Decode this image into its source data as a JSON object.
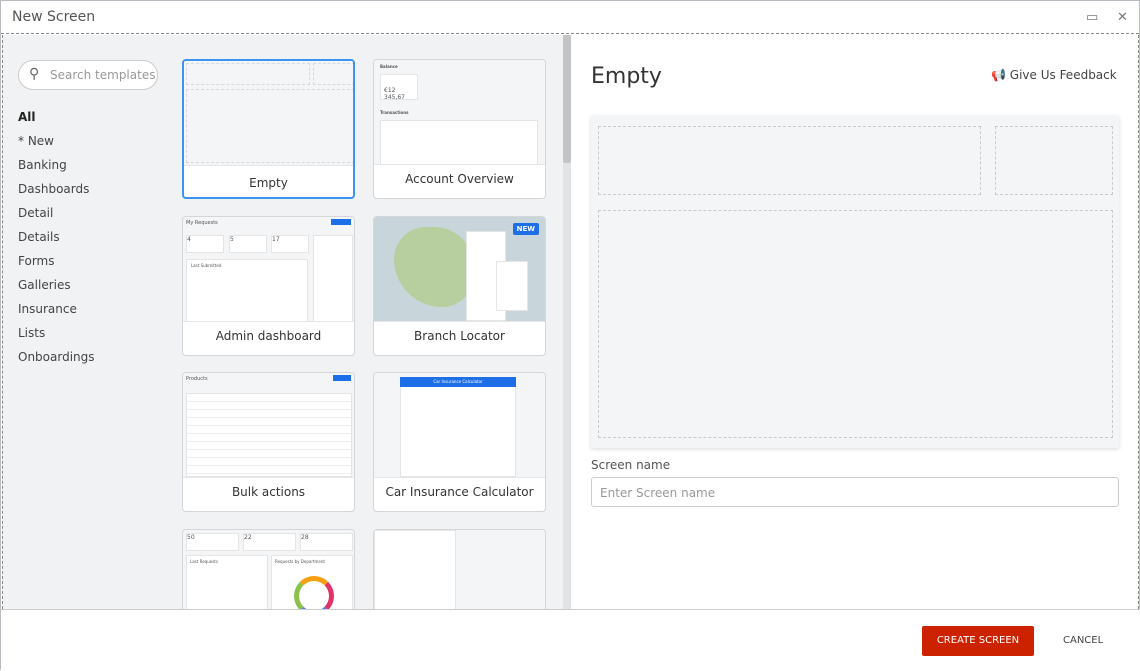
{
  "window": {
    "title": "New Screen"
  },
  "search": {
    "placeholder": "Search templates"
  },
  "categories": [
    "All",
    "* New",
    "Banking",
    "Dashboards",
    "Detail",
    "Details",
    "Forms",
    "Galleries",
    "Insurance",
    "Lists",
    "Onboardings"
  ],
  "templates": [
    {
      "label": "Empty",
      "selected": true
    },
    {
      "label": "Account Overview",
      "thumb": {
        "title": "Balance",
        "balance": "€12 345,67",
        "section": "Transactions"
      }
    },
    {
      "label": "Admin dashboard",
      "thumb": {
        "title": "My Requests",
        "stats": [
          "4",
          "5",
          "17"
        ],
        "section": "Last Submitted"
      }
    },
    {
      "label": "Branch Locator",
      "badge": "NEW"
    },
    {
      "label": "Bulk actions",
      "thumb": {
        "title": "Products"
      }
    },
    {
      "label": "Car Insurance Calculator",
      "thumb": {
        "title": "Car Insurance Calculator"
      }
    },
    {
      "label": "",
      "thumb": {
        "stats": [
          "50",
          "22",
          "28"
        ],
        "section": "Last Requests",
        "chart": "Requests by Department"
      }
    },
    {
      "label": ""
    }
  ],
  "preview": {
    "title": "Empty",
    "feedback": "Give Us Feedback"
  },
  "screen_name": {
    "label": "Screen name",
    "placeholder": "Enter Screen name",
    "value": ""
  },
  "footer": {
    "create": "CREATE SCREEN",
    "cancel": "CANCEL"
  },
  "colors": {
    "accent": "#3d93f0",
    "primary_button": "#cc2200"
  }
}
